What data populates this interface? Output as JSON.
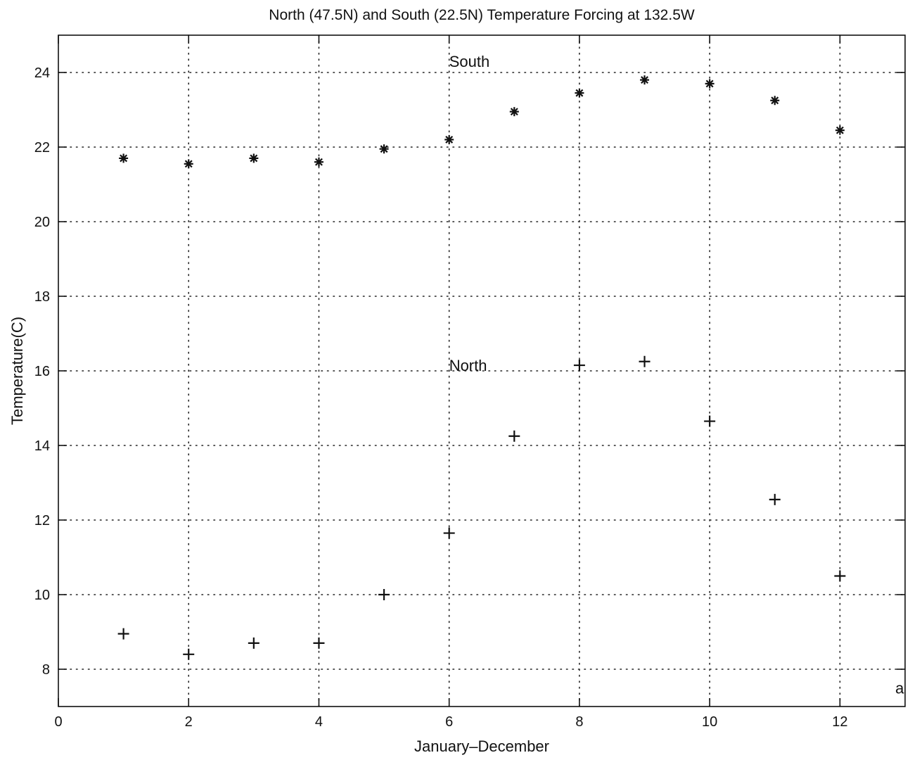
{
  "chart_data": {
    "type": "scatter",
    "title": "North (47.5N) and South (22.5N) Temperature Forcing at 132.5W",
    "xlabel": "January–December",
    "ylabel": "Temperature(C)",
    "xlim": [
      0,
      13
    ],
    "ylim": [
      7,
      25
    ],
    "xticks": [
      0,
      2,
      4,
      6,
      8,
      10,
      12
    ],
    "yticks": [
      8,
      10,
      12,
      14,
      16,
      18,
      20,
      22,
      24
    ],
    "grid": true,
    "series": [
      {
        "name": "South",
        "marker": "asterisk",
        "x": [
          1,
          2,
          3,
          4,
          5,
          6,
          7,
          8,
          9,
          10,
          11,
          12
        ],
        "y": [
          21.7,
          21.55,
          21.7,
          21.6,
          21.95,
          22.2,
          22.95,
          23.45,
          23.8,
          23.7,
          23.25,
          22.45
        ]
      },
      {
        "name": "North",
        "marker": "plus",
        "x": [
          1,
          2,
          3,
          4,
          5,
          6,
          7,
          8,
          9,
          10,
          11,
          12
        ],
        "y": [
          8.95,
          8.4,
          8.7,
          8.7,
          10.0,
          11.65,
          14.25,
          16.15,
          16.25,
          14.65,
          12.55,
          10.5
        ]
      }
    ],
    "annotations": [
      {
        "text": "South",
        "x": 6.0,
        "y": 24.15
      },
      {
        "text": "North",
        "x": 6.0,
        "y": 16.0
      },
      {
        "text": "a",
        "x": 12.85,
        "y": 7.35
      }
    ]
  }
}
